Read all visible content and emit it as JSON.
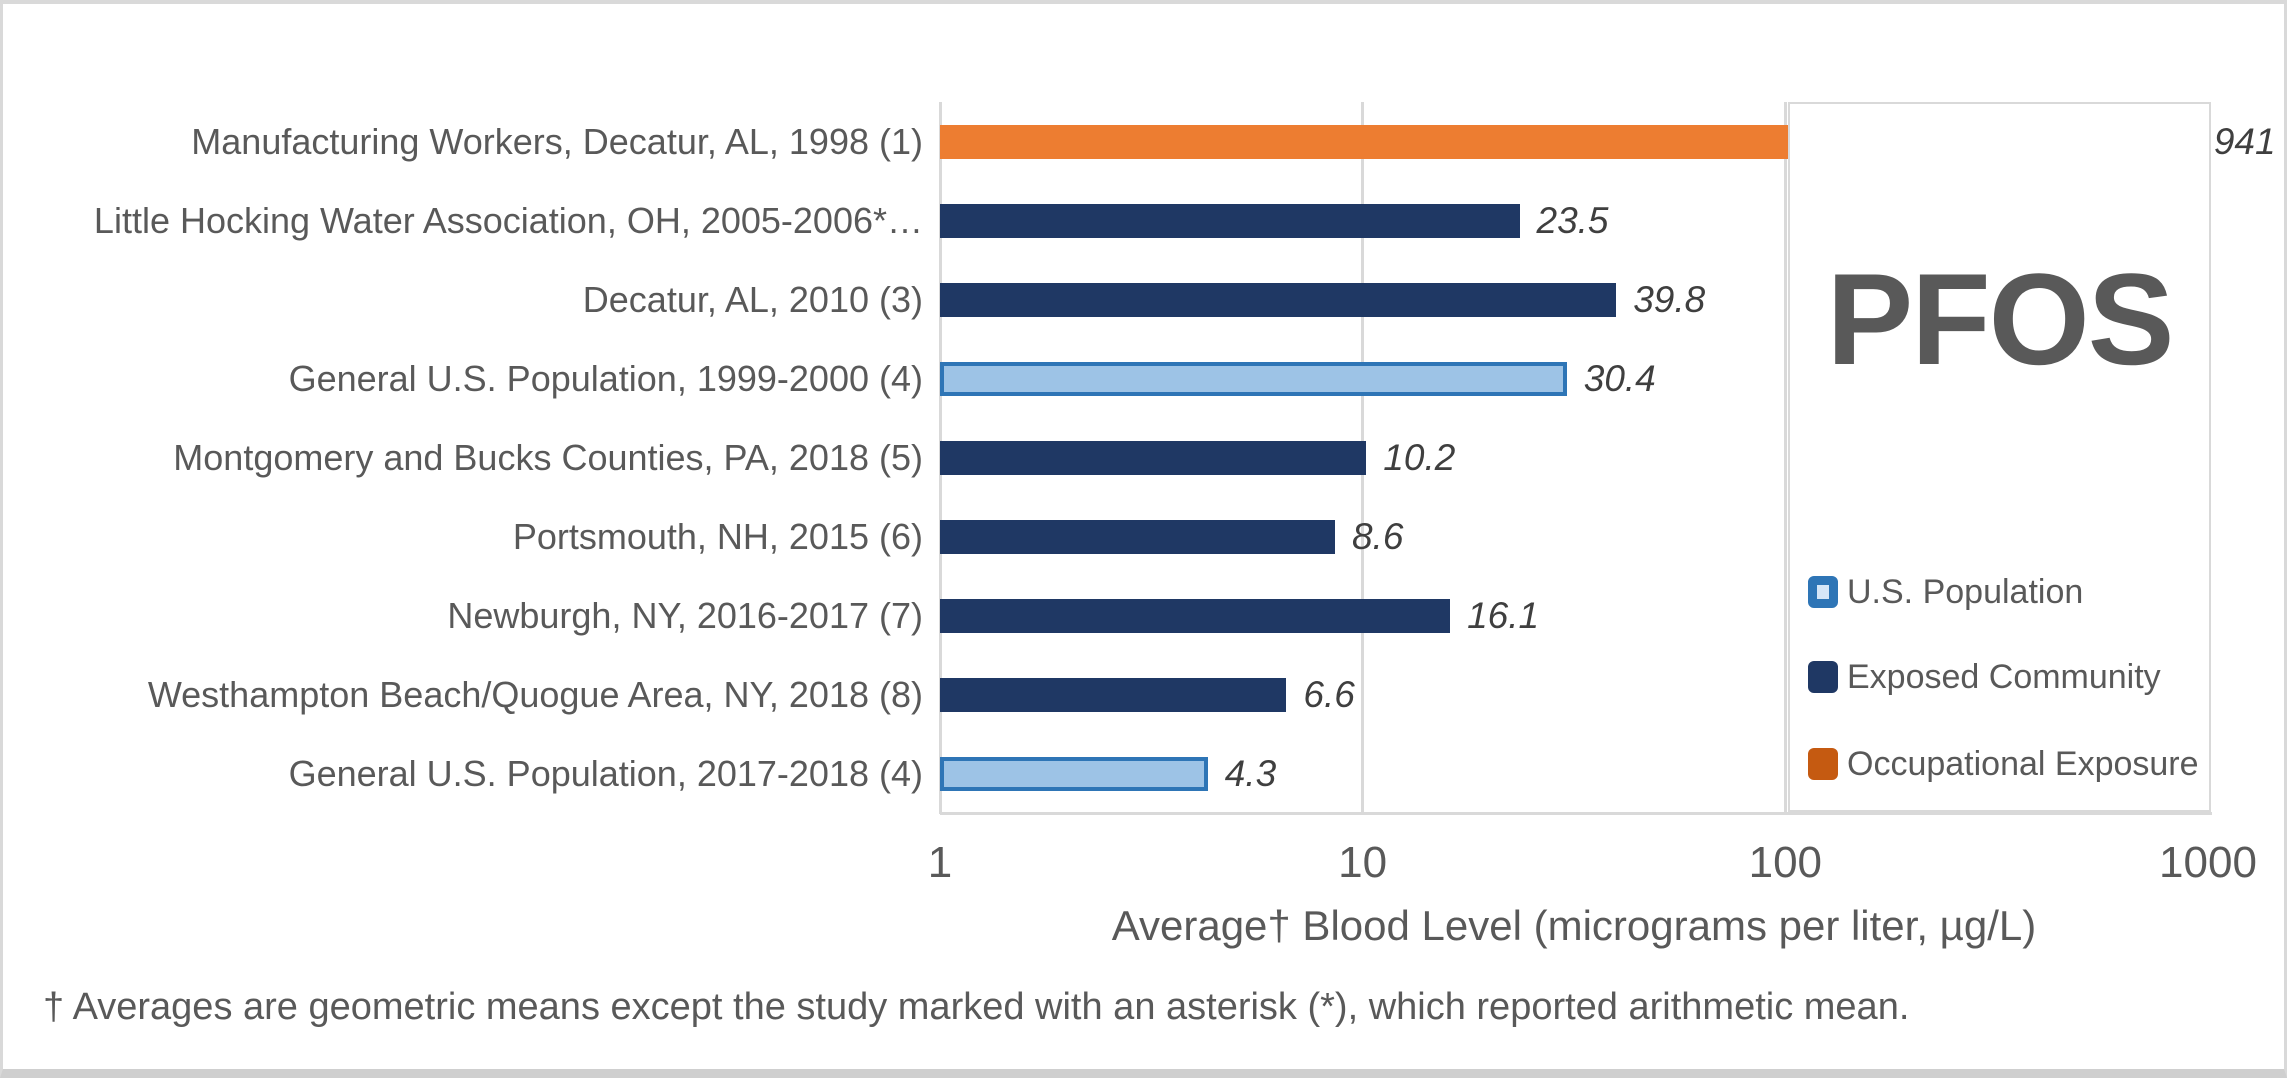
{
  "chart_data": {
    "type": "bar",
    "orientation": "horizontal",
    "x_scale": "log10",
    "x_range": [
      1,
      1000
    ],
    "x_ticks": [
      "1",
      "10",
      "100",
      "1000"
    ],
    "grid": "vertical-gridlines-on",
    "legend_position": "right-overlay-box",
    "title": "PFOS",
    "xlabel": "Average† Blood Level (micrograms per liter, µg/L)",
    "footnote": "† Averages are geometric means except the study marked with an asterisk (*), which reported arithmetic mean.",
    "categories": [
      "Manufacturing Workers, Decatur, AL, 1998 (1)",
      "Little Hocking Water Association, OH, 2005-2006*…",
      "Decatur, AL, 2010 (3)",
      "General U.S. Population, 1999-2000 (4)",
      "Montgomery and Bucks Counties, PA, 2018 (5)",
      "Portsmouth, NH, 2015 (6)",
      "Newburgh, NY, 2016-2017 (7)",
      "Westhampton Beach/Quogue Area, NY, 2018 (8)",
      "General U.S. Population, 2017-2018 (4)"
    ],
    "values": [
      941,
      23.5,
      39.8,
      30.4,
      10.2,
      8.6,
      16.1,
      6.6,
      4.3
    ],
    "value_labels": [
      "941",
      "23.5",
      "39.8",
      "30.4",
      "10.2",
      "8.6",
      "16.1",
      "6.6",
      "4.3"
    ],
    "bar_series_keys": [
      "occupational",
      "exposed",
      "exposed",
      "us_population",
      "exposed",
      "exposed",
      "exposed",
      "exposed",
      "us_population"
    ],
    "bar_styles": {
      "us_population": {
        "fill": "#9DC3E6",
        "border": "#2E75B6",
        "border_width": 4
      },
      "exposed": {
        "fill": "#1F3864",
        "border": "#1F3864",
        "border_width": 0
      },
      "occupational": {
        "fill": "#ED7D31",
        "border": "#ED7D31",
        "border_width": 0
      }
    },
    "legend": [
      {
        "key": "us_population",
        "label": "U.S. Population",
        "swatch_fill": "#D6E6F7",
        "swatch_border": "#2E75B6",
        "swatch_border_width": 9
      },
      {
        "key": "exposed",
        "label": "Exposed Community",
        "swatch_fill": "#1F3864",
        "swatch_border": "#1F3864",
        "swatch_border_width": 0
      },
      {
        "key": "occupational",
        "label": "Occupational Exposure",
        "swatch_fill": "#C55A11",
        "swatch_border": "#C55A11",
        "swatch_border_width": 0
      }
    ],
    "colors": {
      "gridline": "#D9D9D9",
      "axis_text": "#595959",
      "value_label_text": "#3F3F3F",
      "title_text": "#595959"
    }
  }
}
